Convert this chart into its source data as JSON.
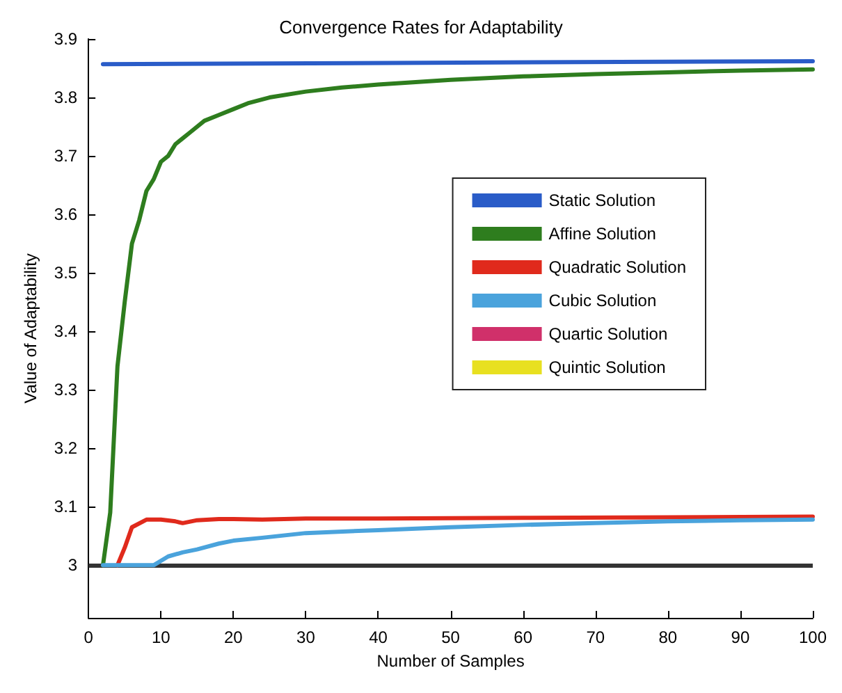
{
  "chart_data": {
    "type": "line",
    "title": "Convergence Rates for Adaptability",
    "xlabel": "Number of Samples",
    "ylabel": "Value of Adaptability",
    "xlim": [
      0,
      100
    ],
    "xticks": [
      0,
      10,
      20,
      30,
      40,
      50,
      60,
      70,
      80,
      90,
      100
    ],
    "ylim": [
      2.91,
      3.9
    ],
    "yticks": [
      3,
      3.1,
      3.2,
      3.3,
      3.4,
      3.5,
      3.6,
      3.7,
      3.8,
      3.9
    ],
    "grid": false,
    "legend": "right",
    "marker": "none",
    "line_style": "solid",
    "ref_lines": [
      {
        "axis": "y",
        "value": 3,
        "label": null,
        "color": "#333333"
      }
    ],
    "series": [
      {
        "name": "Static Solution",
        "color": "#2a5cc8",
        "x": [
          2,
          100
        ],
        "values": [
          3.857,
          3.862
        ]
      },
      {
        "name": "Affine Solution",
        "color": "#2e7d1e",
        "x": [
          2,
          3,
          4,
          5,
          6,
          7,
          8,
          9,
          10,
          11,
          12,
          13,
          14,
          16,
          18,
          20,
          22,
          25,
          30,
          35,
          40,
          50,
          60,
          70,
          80,
          90,
          100
        ],
        "values": [
          3.0,
          3.09,
          3.34,
          3.45,
          3.55,
          3.59,
          3.64,
          3.66,
          3.69,
          3.7,
          3.72,
          3.73,
          3.74,
          3.76,
          3.77,
          3.78,
          3.79,
          3.8,
          3.81,
          3.817,
          3.822,
          3.83,
          3.836,
          3.84,
          3.843,
          3.846,
          3.848
        ]
      },
      {
        "name": "Quadratic Solution",
        "color": "#e02a1c",
        "x": [
          4,
          5,
          6,
          8,
          10,
          12,
          13,
          15,
          18,
          20,
          24,
          30,
          40,
          60,
          80,
          100
        ],
        "values": [
          3.0,
          3.03,
          3.065,
          3.078,
          3.078,
          3.075,
          3.072,
          3.077,
          3.079,
          3.079,
          3.078,
          3.08,
          3.08,
          3.081,
          3.082,
          3.083
        ]
      },
      {
        "name": "Cubic Solution",
        "color": "#4aa3dc",
        "x": [
          2,
          9,
          11,
          13,
          15,
          18,
          20,
          24,
          30,
          40,
          50,
          60,
          70,
          80,
          90,
          100
        ],
        "values": [
          3.0,
          3.0,
          3.015,
          3.022,
          3.027,
          3.037,
          3.042,
          3.047,
          3.055,
          3.06,
          3.065,
          3.069,
          3.072,
          3.075,
          3.077,
          3.078
        ]
      },
      {
        "name": "Quartic Solution",
        "color": "#d0306a"
      },
      {
        "name": "Quintic Solution",
        "color": "#e8e020"
      }
    ]
  }
}
